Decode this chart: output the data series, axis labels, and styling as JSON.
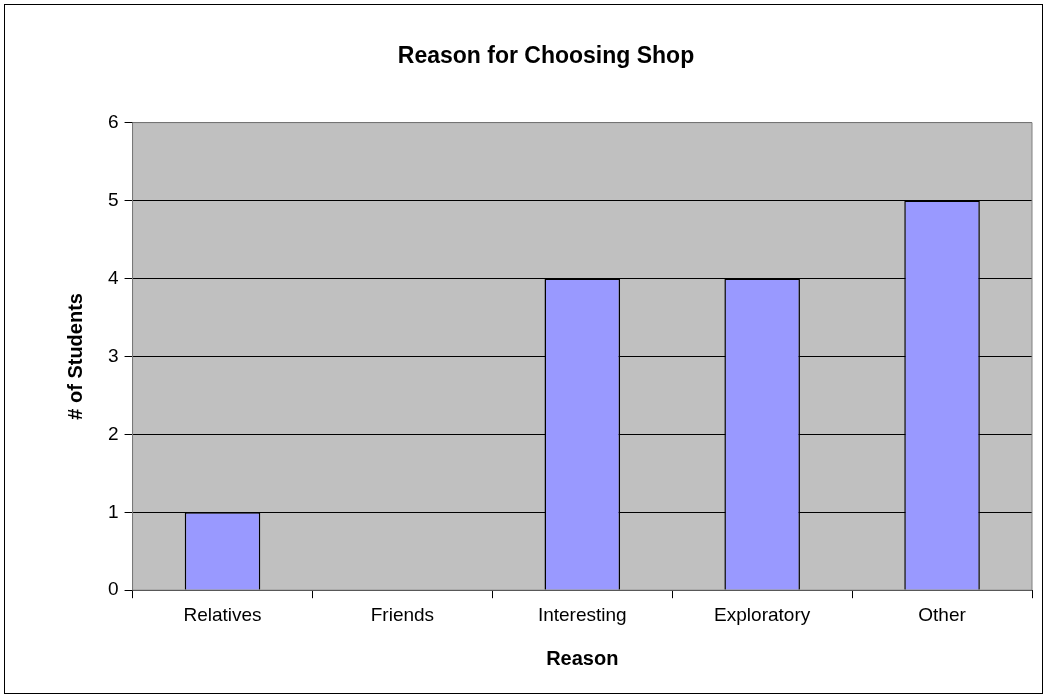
{
  "chart_data": {
    "type": "bar",
    "title": "Reason for Choosing Shop",
    "xlabel": "Reason",
    "ylabel": "# of Students",
    "categories": [
      "Relatives",
      "Friends",
      "Interesting",
      "Exploratory",
      "Other"
    ],
    "values": [
      1,
      0,
      4,
      4,
      5
    ],
    "color": "#9999ff",
    "ylim": [
      0,
      6
    ],
    "yticks": [
      0,
      1,
      2,
      3,
      4,
      5,
      6
    ],
    "grid": "y",
    "legend": false
  }
}
